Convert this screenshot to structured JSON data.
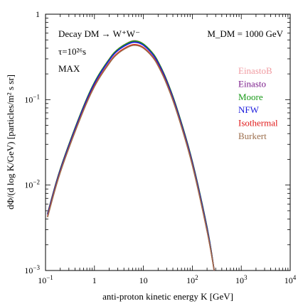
{
  "chart_data": {
    "type": "line",
    "xlabel": "anti-proton kinetic energy K [GeV]",
    "ylabel": "dΦ/(d log K/GeV) [particles/m² s sr]",
    "xscale": "log",
    "yscale": "log",
    "xlim": [
      0.1,
      10000
    ],
    "ylim": [
      0.001,
      1
    ],
    "grid": false,
    "legend_position": "right",
    "x_tick_labels": [
      {
        "value": 0.1,
        "base": "10",
        "exp": "−1"
      },
      {
        "value": 1,
        "base": "1",
        "exp": ""
      },
      {
        "value": 10,
        "base": "10",
        "exp": ""
      },
      {
        "value": 100,
        "base": "10",
        "exp": "2"
      },
      {
        "value": 1000,
        "base": "10",
        "exp": "3"
      },
      {
        "value": 10000,
        "base": "10",
        "exp": "4"
      }
    ],
    "y_tick_labels": [
      {
        "value": 0.001,
        "base": "10",
        "exp": "−3"
      },
      {
        "value": 0.01,
        "base": "10",
        "exp": "−2"
      },
      {
        "value": 0.1,
        "base": "10",
        "exp": "−1"
      },
      {
        "value": 1,
        "base": "1",
        "exp": ""
      }
    ],
    "annotations": {
      "channel_line": "Decay DM → W⁺W⁻",
      "lifetime_line": "τ=10²⁶s",
      "propagation_line": "MAX",
      "mass_label": "M_DM = 1000 GeV"
    },
    "series": [
      {
        "name": "EinastoB",
        "color": "#f09aa0",
        "x": [
          0.11,
          0.2,
          0.5,
          1,
          2,
          3,
          5,
          7,
          10,
          15,
          20,
          30,
          50,
          100,
          200,
          280
        ],
        "y": [
          0.0047,
          0.0155,
          0.065,
          0.16,
          0.3,
          0.39,
          0.47,
          0.49,
          0.45,
          0.36,
          0.28,
          0.17,
          0.075,
          0.019,
          0.0032,
          0.001
        ]
      },
      {
        "name": "Einasto",
        "color": "#7a1a8a",
        "x": [
          0.11,
          0.2,
          0.5,
          1,
          2,
          3,
          5,
          7,
          10,
          15,
          20,
          30,
          50,
          100,
          200,
          280
        ],
        "y": [
          0.0046,
          0.0152,
          0.064,
          0.158,
          0.295,
          0.385,
          0.462,
          0.48,
          0.445,
          0.355,
          0.275,
          0.167,
          0.074,
          0.0188,
          0.0032,
          0.001
        ]
      },
      {
        "name": "Moore",
        "color": "#1a9a1a",
        "x": [
          0.11,
          0.2,
          0.5,
          1,
          2,
          3,
          5,
          7,
          10,
          15,
          20,
          30,
          50,
          100,
          200,
          280
        ],
        "y": [
          0.0046,
          0.0153,
          0.0645,
          0.159,
          0.297,
          0.387,
          0.465,
          0.485,
          0.447,
          0.357,
          0.277,
          0.168,
          0.0745,
          0.0189,
          0.0032,
          0.001
        ]
      },
      {
        "name": "NFW",
        "color": "#1a1adc",
        "x": [
          0.11,
          0.2,
          0.5,
          1,
          2,
          3,
          5,
          7,
          10,
          15,
          20,
          30,
          50,
          100,
          200,
          280
        ],
        "y": [
          0.0045,
          0.0149,
          0.0625,
          0.154,
          0.288,
          0.375,
          0.45,
          0.468,
          0.433,
          0.345,
          0.268,
          0.163,
          0.072,
          0.0183,
          0.0031,
          0.001
        ]
      },
      {
        "name": "Isothermal",
        "color": "#e01818",
        "x": [
          0.11,
          0.2,
          0.5,
          1,
          2,
          3,
          5,
          7,
          10,
          15,
          20,
          30,
          50,
          100,
          200,
          280
        ],
        "y": [
          0.0043,
          0.0142,
          0.059,
          0.145,
          0.27,
          0.352,
          0.423,
          0.44,
          0.408,
          0.326,
          0.253,
          0.154,
          0.068,
          0.0173,
          0.0029,
          0.001
        ]
      },
      {
        "name": "Burkert",
        "color": "#9c6e4c",
        "x": [
          0.11,
          0.2,
          0.5,
          1,
          2,
          3,
          5,
          7,
          10,
          15,
          20,
          30,
          50,
          100,
          200,
          280
        ],
        "y": [
          0.0042,
          0.014,
          0.058,
          0.142,
          0.265,
          0.345,
          0.415,
          0.432,
          0.4,
          0.32,
          0.248,
          0.151,
          0.067,
          0.017,
          0.0029,
          0.001
        ]
      }
    ]
  }
}
